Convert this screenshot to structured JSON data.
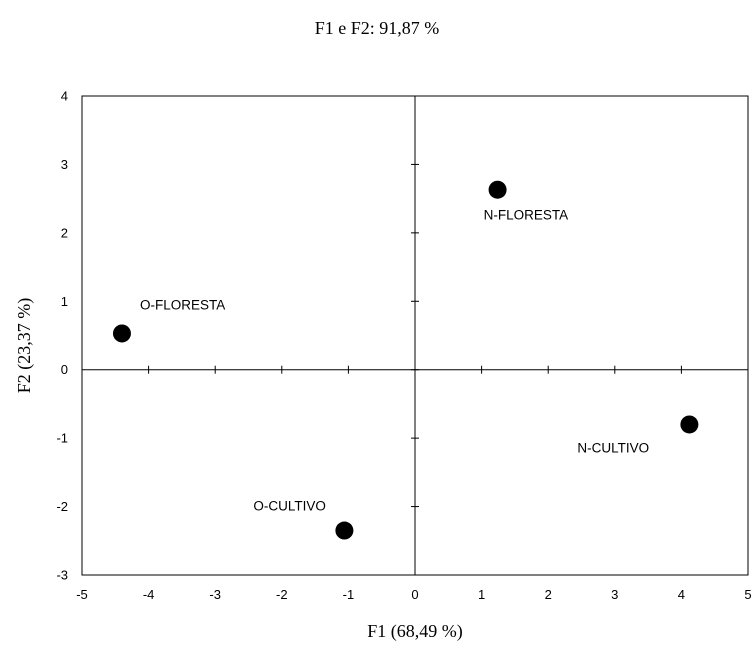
{
  "chart_data": {
    "type": "scatter",
    "title": "F1 e F2: 91,87 %",
    "xlabel": "F1 (68,49 %)",
    "ylabel": "F2 (23,37 %)",
    "xlim": [
      -5,
      5
    ],
    "ylim": [
      -3,
      4
    ],
    "xticks": [
      -5,
      -4,
      -3,
      -2,
      -1,
      0,
      1,
      2,
      3,
      4,
      5
    ],
    "yticks": [
      -3,
      -2,
      -1,
      0,
      1,
      2,
      3,
      4
    ],
    "grid": false,
    "legend": "none",
    "point_color": "#000000",
    "points": [
      {
        "label": "N-FLORESTA",
        "x": 1.24,
        "y": 2.63,
        "label_side": "below"
      },
      {
        "label": "O-FLORESTA",
        "x": -4.4,
        "y": 0.53,
        "label_side": "above-right"
      },
      {
        "label": "N-CULTIVO",
        "x": 4.12,
        "y": -0.8,
        "label_side": "below-left"
      },
      {
        "label": "O-CULTIVO",
        "x": -1.06,
        "y": -2.35,
        "label_side": "above-left"
      }
    ]
  }
}
